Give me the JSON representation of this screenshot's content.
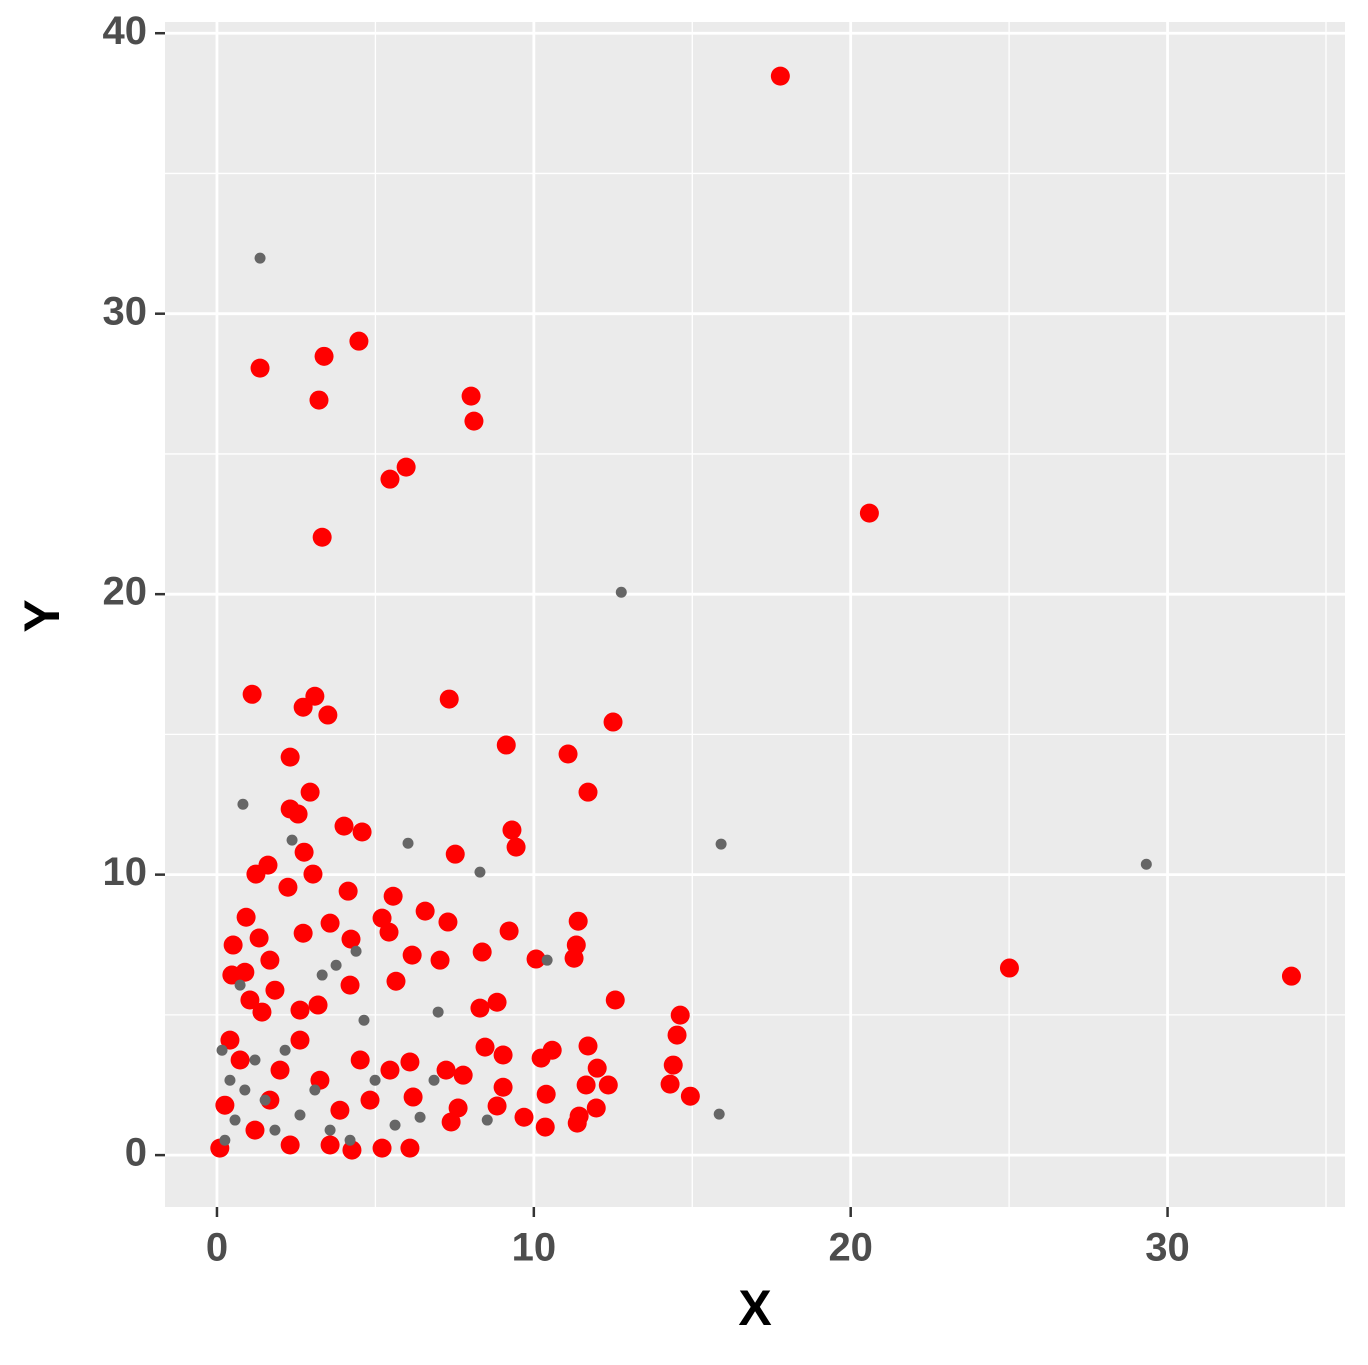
{
  "chart_data": {
    "type": "scatter",
    "x_label": "X",
    "y_label": "Y",
    "xlim": [
      -1.64,
      35.6
    ],
    "ylim": [
      -1.85,
      40.4
    ],
    "xticks": [
      0,
      10,
      20,
      30
    ],
    "yticks": [
      0,
      10,
      20,
      30,
      40
    ],
    "grid": true,
    "series": [
      {
        "color": "#ff0000",
        "x": [
          17.78,
          20.59,
          25.01,
          33.91,
          4.48,
          3.38,
          1.36,
          3.22,
          8.02,
          8.11,
          5.97,
          5.46,
          3.32,
          1.11,
          3.09,
          2.72,
          3.5,
          7.33,
          12.5,
          9.13,
          11.08,
          2.31,
          11.71,
          2.94,
          2.31,
          2.56,
          4.01,
          4.58,
          9.31,
          9.44,
          7.52,
          2.75,
          1.61,
          1.23,
          3.03,
          2.24,
          4.14,
          5.56,
          6.57,
          7.29,
          11.4,
          0.92,
          3.57,
          5.21,
          5.43,
          9.22,
          1.33,
          2.72,
          4.23,
          11.34,
          0.51,
          8.37,
          6.16,
          7.04,
          10.07,
          11.27,
          1.67,
          0.88,
          0.47,
          5.65,
          4.2,
          12.57,
          8.84,
          8.3,
          3.19,
          14.62,
          14.52,
          1.42,
          11.71,
          8.46,
          10.58,
          10.23,
          9.03,
          14.4,
          12.0,
          6.09,
          7.23,
          7.77,
          14.3,
          12.35,
          11.65,
          9.03,
          14.94,
          10.39,
          6.19,
          11.97,
          8.84,
          7.61,
          11.43,
          9.69,
          11.37,
          7.39,
          10.36,
          6.09,
          4.26,
          5.21,
          0.09,
          0.25,
          0.41,
          0.73,
          1.2,
          1.67,
          1.99,
          2.62,
          3.25,
          3.88,
          4.52,
          2.31,
          3.57,
          1.04,
          1.83,
          4.83,
          5.46,
          2.62
        ],
        "y": [
          38.47,
          22.89,
          6.67,
          6.38,
          29.02,
          28.48,
          28.06,
          26.92,
          27.06,
          26.17,
          24.53,
          24.1,
          22.03,
          16.43,
          16.36,
          15.97,
          15.69,
          16.26,
          15.44,
          14.62,
          14.3,
          14.19,
          12.94,
          12.94,
          12.34,
          12.16,
          11.73,
          11.52,
          11.59,
          10.98,
          10.73,
          10.8,
          10.34,
          10.02,
          10.02,
          9.55,
          9.41,
          9.23,
          8.7,
          8.31,
          8.34,
          8.48,
          8.27,
          8.45,
          7.95,
          7.99,
          7.74,
          7.91,
          7.7,
          7.49,
          7.49,
          7.24,
          7.13,
          6.95,
          6.99,
          7.02,
          6.95,
          6.52,
          6.42,
          6.2,
          6.06,
          5.53,
          5.45,
          5.24,
          5.35,
          4.99,
          4.28,
          5.1,
          3.89,
          3.85,
          3.74,
          3.46,
          3.57,
          3.21,
          3.1,
          3.32,
          3.03,
          2.85,
          2.53,
          2.5,
          2.5,
          2.42,
          2.1,
          2.17,
          2.07,
          1.68,
          1.75,
          1.68,
          1.39,
          1.35,
          1.14,
          1.18,
          1.0,
          0.25,
          0.18,
          0.25,
          0.25,
          1.78,
          4.1,
          3.39,
          0.89,
          1.96,
          3.03,
          4.1,
          2.67,
          1.6,
          3.39,
          0.36,
          0.36,
          5.53,
          5.88,
          1.96,
          3.03,
          5.17
        ]
      },
      {
        "color": "#666666",
        "x": [
          1.36,
          12.76,
          15.91,
          29.33,
          0.82,
          2.37,
          6.03,
          8.3,
          10.42,
          4.39,
          3.76,
          6.98,
          15.85,
          8.53,
          6.41,
          4.64,
          3.32,
          6.85,
          0.16,
          0.41,
          0.57,
          0.88,
          1.2,
          1.52,
          1.83,
          2.15,
          2.62,
          3.09,
          3.57,
          4.2,
          4.99,
          5.62,
          0.73,
          0.25
        ],
        "y": [
          31.98,
          20.07,
          11.09,
          10.37,
          12.51,
          11.23,
          11.12,
          10.09,
          6.95,
          7.27,
          6.77,
          5.1,
          1.46,
          1.25,
          1.35,
          4.81,
          6.42,
          2.67,
          3.74,
          2.67,
          1.25,
          2.32,
          3.39,
          1.96,
          0.89,
          3.74,
          1.43,
          2.32,
          0.89,
          0.53,
          2.67,
          1.07,
          6.06,
          0.53
        ]
      }
    ]
  }
}
